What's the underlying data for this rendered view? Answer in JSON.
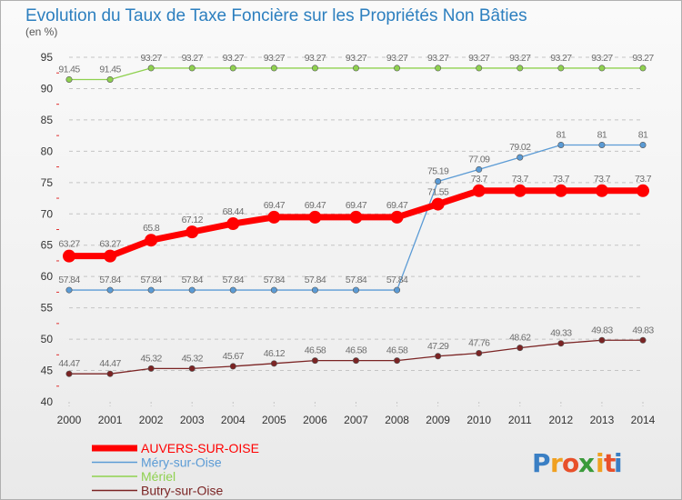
{
  "chart_data": {
    "type": "line",
    "title": "Evolution du Taux de Taxe Foncière sur les Propriétés Non Bâties",
    "subtitle": "(en %)",
    "xlabel": "",
    "ylabel": "",
    "x": [
      "2000",
      "2001",
      "2002",
      "2003",
      "2004",
      "2005",
      "2006",
      "2007",
      "2008",
      "2009",
      "2010",
      "2011",
      "2012",
      "2013",
      "2014"
    ],
    "ylim": [
      40,
      95
    ],
    "yticks": [
      40,
      45,
      50,
      55,
      60,
      65,
      70,
      75,
      80,
      85,
      90,
      95
    ],
    "grid": "horizontal dashed",
    "legend_position": "bottom-left",
    "series": [
      {
        "name": "AUVERS-SUR-OISE",
        "color": "#ff0000",
        "values": [
          63.27,
          63.27,
          65.8,
          67.12,
          68.44,
          69.47,
          69.47,
          69.47,
          69.47,
          71.55,
          73.7,
          73.7,
          73.7,
          73.7,
          73.7
        ],
        "labels": [
          "63.27",
          "63.27",
          "65.8",
          "67.12",
          "68.44",
          "69.47",
          "69.47",
          "69.47",
          "69.47",
          "71.55",
          "73.7",
          "73.7",
          "73.7",
          "73.7",
          "73.7"
        ]
      },
      {
        "name": "Méry-sur-Oise",
        "color": "#5b9bd5",
        "values": [
          57.84,
          57.84,
          57.84,
          57.84,
          57.84,
          57.84,
          57.84,
          57.84,
          57.84,
          75.19,
          77.09,
          79.02,
          81,
          81,
          81
        ],
        "labels": [
          "57.84",
          "57.84",
          "57.84",
          "57.84",
          "57.84",
          "57.84",
          "57.84",
          "57.84",
          "57.84",
          "75.19",
          "77.09",
          "79.02",
          "81",
          "81",
          "81"
        ]
      },
      {
        "name": "Mériel",
        "color": "#8fd14f",
        "values": [
          91.45,
          91.45,
          93.27,
          93.27,
          93.27,
          93.27,
          93.27,
          93.27,
          93.27,
          93.27,
          93.27,
          93.27,
          93.27,
          93.27,
          93.27
        ],
        "labels": [
          "91.45",
          "91.45",
          "93.27",
          "93.27",
          "93.27",
          "93.27",
          "93.27",
          "93.27",
          "93.27",
          "93.27",
          "93.27",
          "93.27",
          "93.27",
          "93.27",
          "93.27"
        ]
      },
      {
        "name": "Butry-sur-Oise",
        "color": "#7b2424",
        "values": [
          44.47,
          44.47,
          45.32,
          45.32,
          45.67,
          46.12,
          46.58,
          46.58,
          46.58,
          47.29,
          47.76,
          48.62,
          49.33,
          49.83,
          49.83
        ],
        "labels": [
          "44.47",
          "44.47",
          "45.32",
          "45.32",
          "45.67",
          "46.12",
          "46.58",
          "46.58",
          "46.58",
          "47.29",
          "47.76",
          "48.62",
          "49.33",
          "49.83",
          "49.83"
        ]
      }
    ]
  },
  "logo": {
    "letters": [
      "P",
      "r",
      "o",
      "x",
      "i",
      "t",
      "i"
    ],
    "colors": [
      "#3a7fc4",
      "#f0a020",
      "#e8502a",
      "#3a9a3a",
      "#f0a020",
      "#e8502a",
      "#3a7fc4"
    ]
  }
}
